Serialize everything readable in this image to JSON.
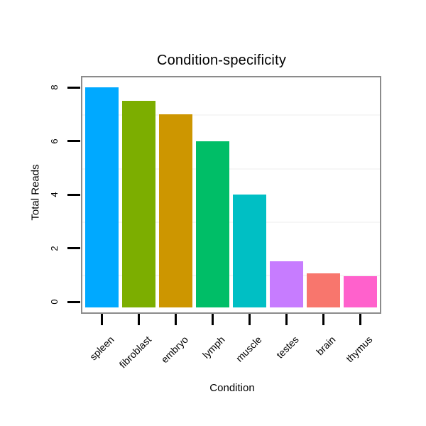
{
  "chart_data": {
    "type": "bar",
    "title": "Condition-specificity",
    "xlabel": "Condition",
    "ylabel": "Total Reads",
    "categories": [
      "spleen",
      "fibroblast",
      "embryo",
      "lymph",
      "muscle",
      "testes",
      "brain",
      "thymus"
    ],
    "values": [
      8,
      7.5,
      7,
      6,
      4,
      1.5,
      1.05,
      0.95
    ],
    "bar_colors": [
      "#00A9FF",
      "#7CAE00",
      "#CD9600",
      "#00BE67",
      "#00BFC4",
      "#C77CFF",
      "#F8766D",
      "#FF61CC"
    ],
    "yticks": [
      0,
      2,
      4,
      6,
      8
    ],
    "ylim": [
      -0.4,
      8.4
    ],
    "minor_gridlines": [
      1,
      3,
      5,
      7
    ],
    "grid": "faint horizontal minor gridlines at odd values",
    "legend_position": "none",
    "panel_border_color": "#8B8B8B",
    "gridline_color": "#F6F6F6",
    "tick_color": "#000000",
    "x_tick_label_rotation_deg": 45,
    "y_tick_label_rotation_deg": 90
  }
}
